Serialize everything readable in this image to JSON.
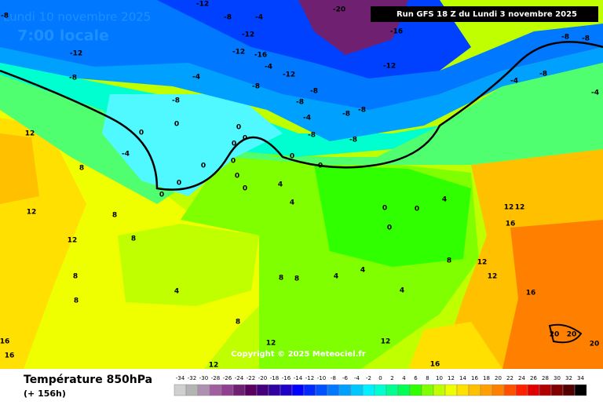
{
  "header": {
    "date": "Lundi 10 novembre 2025",
    "time": "7:00 locale",
    "run": "Run GFS 18 Z du Lundi 3 novembre 2025"
  },
  "footer": {
    "title": "Température 850hPa",
    "lead": "(+ 156h)",
    "copyright": "Copyright © 2025 Meteociel.fr"
  },
  "map_labels": [
    -12,
    -8,
    -8,
    -12,
    -12,
    -16,
    -4,
    -12,
    -8,
    -8,
    -8,
    -12,
    -8,
    -8,
    -4,
    -8,
    -8,
    -4,
    -8,
    0,
    0,
    -4,
    0,
    0,
    0,
    0,
    0,
    0,
    0,
    0,
    0,
    0,
    0,
    4,
    4,
    12,
    8,
    12,
    8,
    8,
    12,
    8,
    8,
    4,
    8,
    8,
    4,
    4,
    12,
    12,
    8,
    12,
    12,
    16,
    16,
    20,
    20,
    20,
    16,
    16,
    12,
    12,
    16,
    12,
    8,
    4,
    4,
    0,
    0,
    0,
    -4,
    -4,
    -8,
    -8,
    -8,
    -20,
    -16,
    -12,
    -8,
    -4
  ],
  "legend": {
    "ticks": [
      -34,
      -32,
      -30,
      -28,
      -26,
      -24,
      -22,
      -20,
      -18,
      -16,
      -14,
      -12,
      -10,
      -8,
      -6,
      -4,
      -2,
      0,
      2,
      4,
      6,
      8,
      10,
      12,
      14,
      16,
      18,
      20,
      22,
      24,
      26,
      28,
      30,
      32,
      34
    ],
    "colors": [
      "#d0d0d0",
      "#b4b4b4",
      "#b090b0",
      "#a060a0",
      "#904090",
      "#702070",
      "#580060",
      "#44007c",
      "#3000a0",
      "#2000c8",
      "#0000ff",
      "#0028ff",
      "#0050ff",
      "#0078ff",
      "#00a0ff",
      "#00c8ff",
      "#00f0ff",
      "#00ffd0",
      "#00ff90",
      "#00ff50",
      "#30ff00",
      "#80ff00",
      "#c0ff00",
      "#f0ff00",
      "#ffe000",
      "#ffc000",
      "#ffa000",
      "#ff8000",
      "#ff5000",
      "#ff2000",
      "#e00000",
      "#b00000",
      "#800000",
      "#500000",
      "#000000"
    ]
  }
}
